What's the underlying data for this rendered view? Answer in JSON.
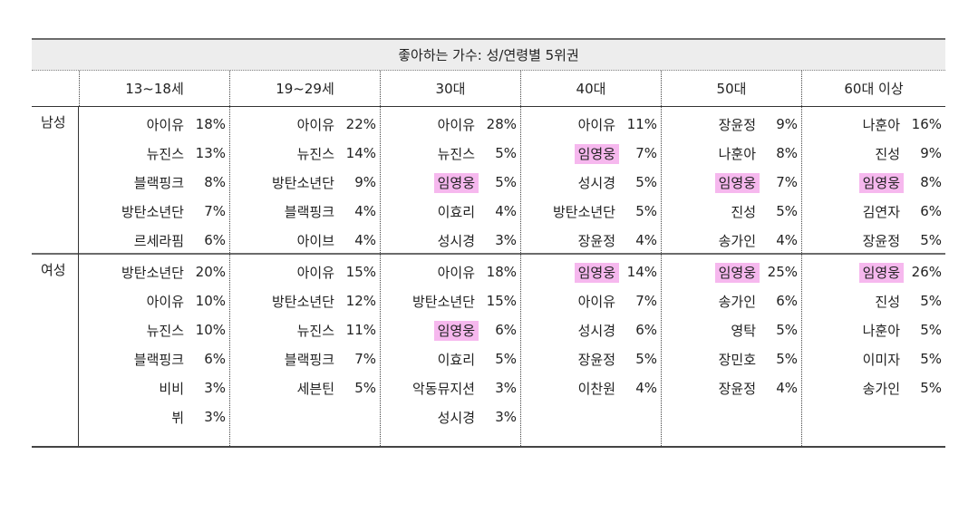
{
  "title": "좋아하는 가수: 성/연령별 5위권",
  "age_groups": [
    "13~18세",
    "19~29세",
    "30대",
    "40대",
    "50대",
    "60대 이상"
  ],
  "highlight_color": "#f6b8ee",
  "sections": [
    {
      "gender": "남성",
      "columns": [
        [
          {
            "name": "아이유",
            "pct": "18%"
          },
          {
            "name": "뉴진스",
            "pct": "13%"
          },
          {
            "name": "블랙핑크",
            "pct": "8%"
          },
          {
            "name": "방탄소년단",
            "pct": "7%"
          },
          {
            "name": "르세라핌",
            "pct": "6%"
          }
        ],
        [
          {
            "name": "아이유",
            "pct": "22%"
          },
          {
            "name": "뉴진스",
            "pct": "14%"
          },
          {
            "name": "방탄소년단",
            "pct": "9%"
          },
          {
            "name": "블랙핑크",
            "pct": "4%"
          },
          {
            "name": "아이브",
            "pct": "4%"
          }
        ],
        [
          {
            "name": "아이유",
            "pct": "28%"
          },
          {
            "name": "뉴진스",
            "pct": "5%"
          },
          {
            "name": "임영웅",
            "pct": "5%",
            "hl": true
          },
          {
            "name": "이효리",
            "pct": "4%"
          },
          {
            "name": "성시경",
            "pct": "3%"
          }
        ],
        [
          {
            "name": "아이유",
            "pct": "11%"
          },
          {
            "name": "임영웅",
            "pct": "7%",
            "hl": true
          },
          {
            "name": "성시경",
            "pct": "5%"
          },
          {
            "name": "방탄소년단",
            "pct": "5%"
          },
          {
            "name": "장윤정",
            "pct": "4%"
          }
        ],
        [
          {
            "name": "장윤정",
            "pct": "9%"
          },
          {
            "name": "나훈아",
            "pct": "8%"
          },
          {
            "name": "임영웅",
            "pct": "7%",
            "hl": true
          },
          {
            "name": "진성",
            "pct": "5%"
          },
          {
            "name": "송가인",
            "pct": "4%"
          }
        ],
        [
          {
            "name": "나훈아",
            "pct": "16%"
          },
          {
            "name": "진성",
            "pct": "9%"
          },
          {
            "name": "임영웅",
            "pct": "8%",
            "hl": true
          },
          {
            "name": "김연자",
            "pct": "6%"
          },
          {
            "name": "장윤정",
            "pct": "5%"
          }
        ]
      ]
    },
    {
      "gender": "여성",
      "columns": [
        [
          {
            "name": "방탄소년단",
            "pct": "20%"
          },
          {
            "name": "아이유",
            "pct": "10%"
          },
          {
            "name": "뉴진스",
            "pct": "10%"
          },
          {
            "name": "블랙핑크",
            "pct": "6%"
          },
          {
            "name": "비비",
            "pct": "3%"
          },
          {
            "name": "뷔",
            "pct": "3%"
          }
        ],
        [
          {
            "name": "아이유",
            "pct": "15%"
          },
          {
            "name": "방탄소년단",
            "pct": "12%"
          },
          {
            "name": "뉴진스",
            "pct": "11%"
          },
          {
            "name": "블랙핑크",
            "pct": "7%"
          },
          {
            "name": "세븐틴",
            "pct": "5%"
          }
        ],
        [
          {
            "name": "아이유",
            "pct": "18%"
          },
          {
            "name": "방탄소년단",
            "pct": "15%"
          },
          {
            "name": "임영웅",
            "pct": "6%",
            "hl": true
          },
          {
            "name": "이효리",
            "pct": "5%"
          },
          {
            "name": "악동뮤지션",
            "pct": "3%"
          },
          {
            "name": "성시경",
            "pct": "3%"
          }
        ],
        [
          {
            "name": "임영웅",
            "pct": "14%",
            "hl": true
          },
          {
            "name": "아이유",
            "pct": "7%"
          },
          {
            "name": "성시경",
            "pct": "6%"
          },
          {
            "name": "장윤정",
            "pct": "5%"
          },
          {
            "name": "이찬원",
            "pct": "4%"
          }
        ],
        [
          {
            "name": "임영웅",
            "pct": "25%",
            "hl": true
          },
          {
            "name": "송가인",
            "pct": "6%"
          },
          {
            "name": "영탁",
            "pct": "5%"
          },
          {
            "name": "장민호",
            "pct": "5%"
          },
          {
            "name": "장윤정",
            "pct": "4%"
          }
        ],
        [
          {
            "name": "임영웅",
            "pct": "26%",
            "hl": true
          },
          {
            "name": "진성",
            "pct": "5%"
          },
          {
            "name": "나훈아",
            "pct": "5%"
          },
          {
            "name": "이미자",
            "pct": "5%"
          },
          {
            "name": "송가인",
            "pct": "5%"
          }
        ]
      ]
    }
  ]
}
